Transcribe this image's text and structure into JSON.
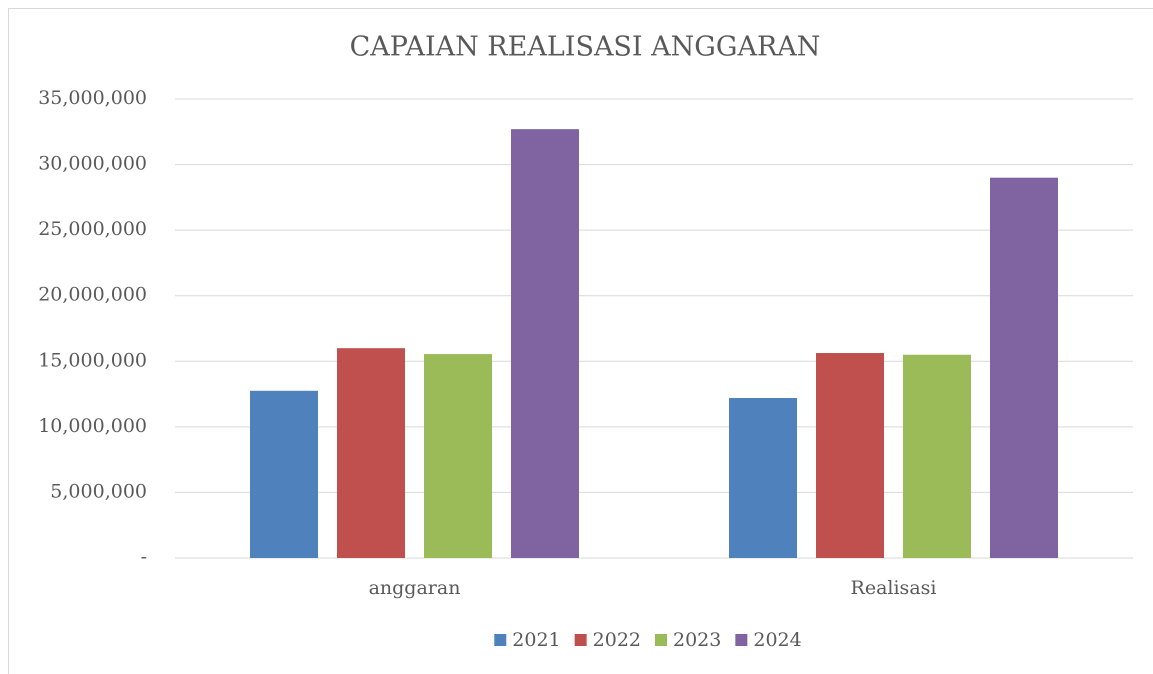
{
  "chart_data": {
    "type": "bar",
    "title": "CAPAIAN REALISASI ANGGARAN",
    "categories": [
      "anggaran",
      "Realisasi"
    ],
    "series": [
      {
        "name": "2021",
        "color": "#4f81bd",
        "values": [
          12750000,
          12200000
        ]
      },
      {
        "name": "2022",
        "color": "#c0504d",
        "values": [
          16000000,
          15630000
        ]
      },
      {
        "name": "2023",
        "color": "#9bbb59",
        "values": [
          15550000,
          15500000
        ]
      },
      {
        "name": "2024",
        "color": "#8064a2",
        "values": [
          32700000,
          29000000
        ]
      }
    ],
    "ylim": [
      0,
      35000000
    ],
    "yticks": [
      {
        "value": 0,
        "label": "-"
      },
      {
        "value": 5000000,
        "label": "5,000,000"
      },
      {
        "value": 10000000,
        "label": "10,000,000"
      },
      {
        "value": 15000000,
        "label": "15,000,000"
      },
      {
        "value": 20000000,
        "label": "20,000,000"
      },
      {
        "value": 25000000,
        "label": "25,000,000"
      },
      {
        "value": 30000000,
        "label": "30,000,000"
      },
      {
        "value": 35000000,
        "label": "35,000,000"
      }
    ],
    "grid": true,
    "legend": "bottom"
  }
}
